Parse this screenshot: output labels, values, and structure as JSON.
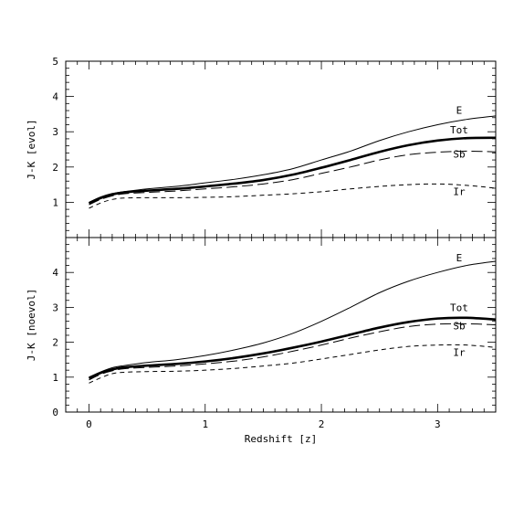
{
  "chart_data": [
    {
      "type": "line",
      "panel": "top",
      "title": "",
      "xlabel": "",
      "ylabel": "J-K  [evol]",
      "xlim": [
        -0.2,
        3.5
      ],
      "ylim": [
        0,
        5
      ],
      "xticks": [
        0,
        1,
        2,
        3
      ],
      "yticks": [
        1,
        2,
        3,
        4,
        5
      ],
      "ytick_labels": [
        "1",
        "2",
        "3",
        "4",
        "5"
      ],
      "grid": false,
      "x": [
        0,
        0.1,
        0.2,
        0.3,
        0.5,
        0.75,
        1.0,
        1.25,
        1.5,
        1.75,
        2.0,
        2.25,
        2.5,
        2.75,
        3.0,
        3.25,
        3.5
      ],
      "series": [
        {
          "name": "E",
          "style": "thin",
          "values": [
            1.0,
            1.15,
            1.25,
            1.3,
            1.38,
            1.45,
            1.55,
            1.65,
            1.78,
            1.95,
            2.2,
            2.45,
            2.75,
            3.0,
            3.2,
            3.35,
            3.45
          ]
        },
        {
          "name": "Tot",
          "style": "thick",
          "values": [
            0.97,
            1.12,
            1.22,
            1.28,
            1.33,
            1.38,
            1.45,
            1.53,
            1.63,
            1.78,
            1.98,
            2.2,
            2.43,
            2.62,
            2.75,
            2.82,
            2.83
          ]
        },
        {
          "name": "Sb",
          "style": "long-dash",
          "values": [
            0.93,
            1.08,
            1.18,
            1.24,
            1.28,
            1.32,
            1.38,
            1.44,
            1.52,
            1.64,
            1.82,
            2.0,
            2.2,
            2.35,
            2.42,
            2.45,
            2.43
          ]
        },
        {
          "name": "Ir",
          "style": "short-dash",
          "values": [
            0.83,
            0.98,
            1.08,
            1.12,
            1.13,
            1.13,
            1.14,
            1.16,
            1.2,
            1.24,
            1.3,
            1.38,
            1.45,
            1.5,
            1.52,
            1.48,
            1.4
          ]
        }
      ]
    },
    {
      "type": "line",
      "panel": "bottom",
      "title": "",
      "xlabel": "Redshift [z]",
      "ylabel": "J-K  [noevol]",
      "xlim": [
        -0.2,
        3.5
      ],
      "ylim": [
        0,
        5
      ],
      "xticks": [
        0,
        1,
        2,
        3
      ],
      "xtick_labels": [
        "0",
        "1",
        "2",
        "3"
      ],
      "yticks": [
        0,
        1,
        2,
        3,
        4
      ],
      "ytick_labels": [
        "0",
        "1",
        "2",
        "3",
        "4"
      ],
      "grid": false,
      "x": [
        0,
        0.1,
        0.2,
        0.3,
        0.5,
        0.75,
        1.0,
        1.25,
        1.5,
        1.75,
        2.0,
        2.25,
        2.5,
        2.75,
        3.0,
        3.25,
        3.5
      ],
      "series": [
        {
          "name": "E",
          "style": "thin",
          "values": [
            1.0,
            1.15,
            1.27,
            1.33,
            1.42,
            1.5,
            1.62,
            1.78,
            1.98,
            2.25,
            2.6,
            3.0,
            3.42,
            3.75,
            4.0,
            4.2,
            4.32
          ]
        },
        {
          "name": "Tot",
          "style": "thick",
          "values": [
            0.97,
            1.12,
            1.22,
            1.28,
            1.33,
            1.38,
            1.45,
            1.55,
            1.68,
            1.84,
            2.02,
            2.22,
            2.42,
            2.58,
            2.68,
            2.7,
            2.65
          ]
        },
        {
          "name": "Sb",
          "style": "long-dash",
          "values": [
            0.92,
            1.08,
            1.18,
            1.24,
            1.28,
            1.32,
            1.38,
            1.46,
            1.58,
            1.74,
            1.92,
            2.12,
            2.3,
            2.45,
            2.52,
            2.53,
            2.5
          ]
        },
        {
          "name": "Ir",
          "style": "short-dash",
          "values": [
            0.83,
            0.98,
            1.1,
            1.14,
            1.16,
            1.17,
            1.2,
            1.25,
            1.32,
            1.4,
            1.52,
            1.65,
            1.78,
            1.88,
            1.92,
            1.92,
            1.85
          ]
        }
      ]
    }
  ]
}
